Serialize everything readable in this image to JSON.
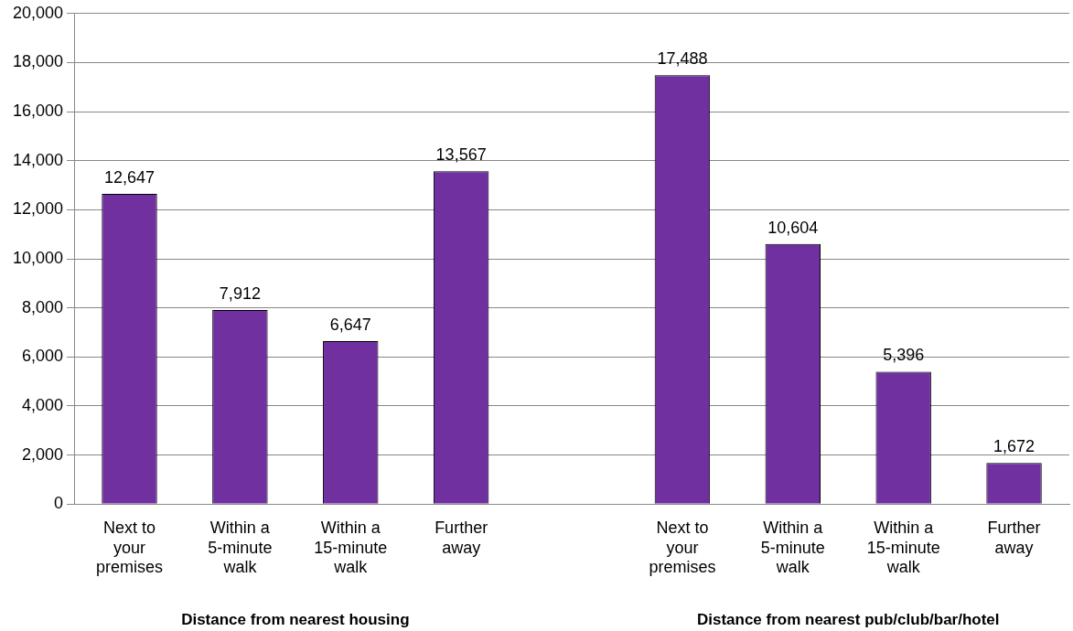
{
  "chart_data": {
    "type": "bar",
    "categories": [
      "Next to your premises",
      "Within a 5-minute walk",
      "Within a 15-minute walk",
      "Further away",
      null,
      "Next to your premises",
      "Within a 5-minute walk",
      "Within a 15-minute walk",
      "Further away"
    ],
    "values": [
      12647,
      7912,
      6647,
      13567,
      null,
      17488,
      10604,
      5396,
      1672
    ],
    "color": "#7030a0",
    "value_labels": [
      "12,647",
      "7,912",
      "6,647",
      "13,567",
      null,
      "17,488",
      "10,604",
      "5,396",
      "1,672"
    ],
    "ylim": [
      0,
      20000
    ],
    "yticks": [
      0,
      {
        "value": 2000,
        "label": "2,000"
      },
      {
        "value": 4000,
        "label": "4,000"
      },
      {
        "value": 6000,
        "label": "6,000"
      },
      {
        "value": 8000,
        "label": "8,000"
      },
      {
        "value": 10000,
        "label": "10,000"
      },
      {
        "value": 12000,
        "label": "12,000"
      },
      {
        "value": 14000,
        "label": "14,000"
      },
      {
        "value": 16000,
        "label": "16,000"
      },
      {
        "value": 18000,
        "label": "18,000"
      },
      {
        "value": 20000,
        "label": "20,000"
      }
    ],
    "grid": "y",
    "annotations": [
      "Distance from nearest housing",
      "Distance from nearest pub/club/bar/hotel"
    ]
  }
}
